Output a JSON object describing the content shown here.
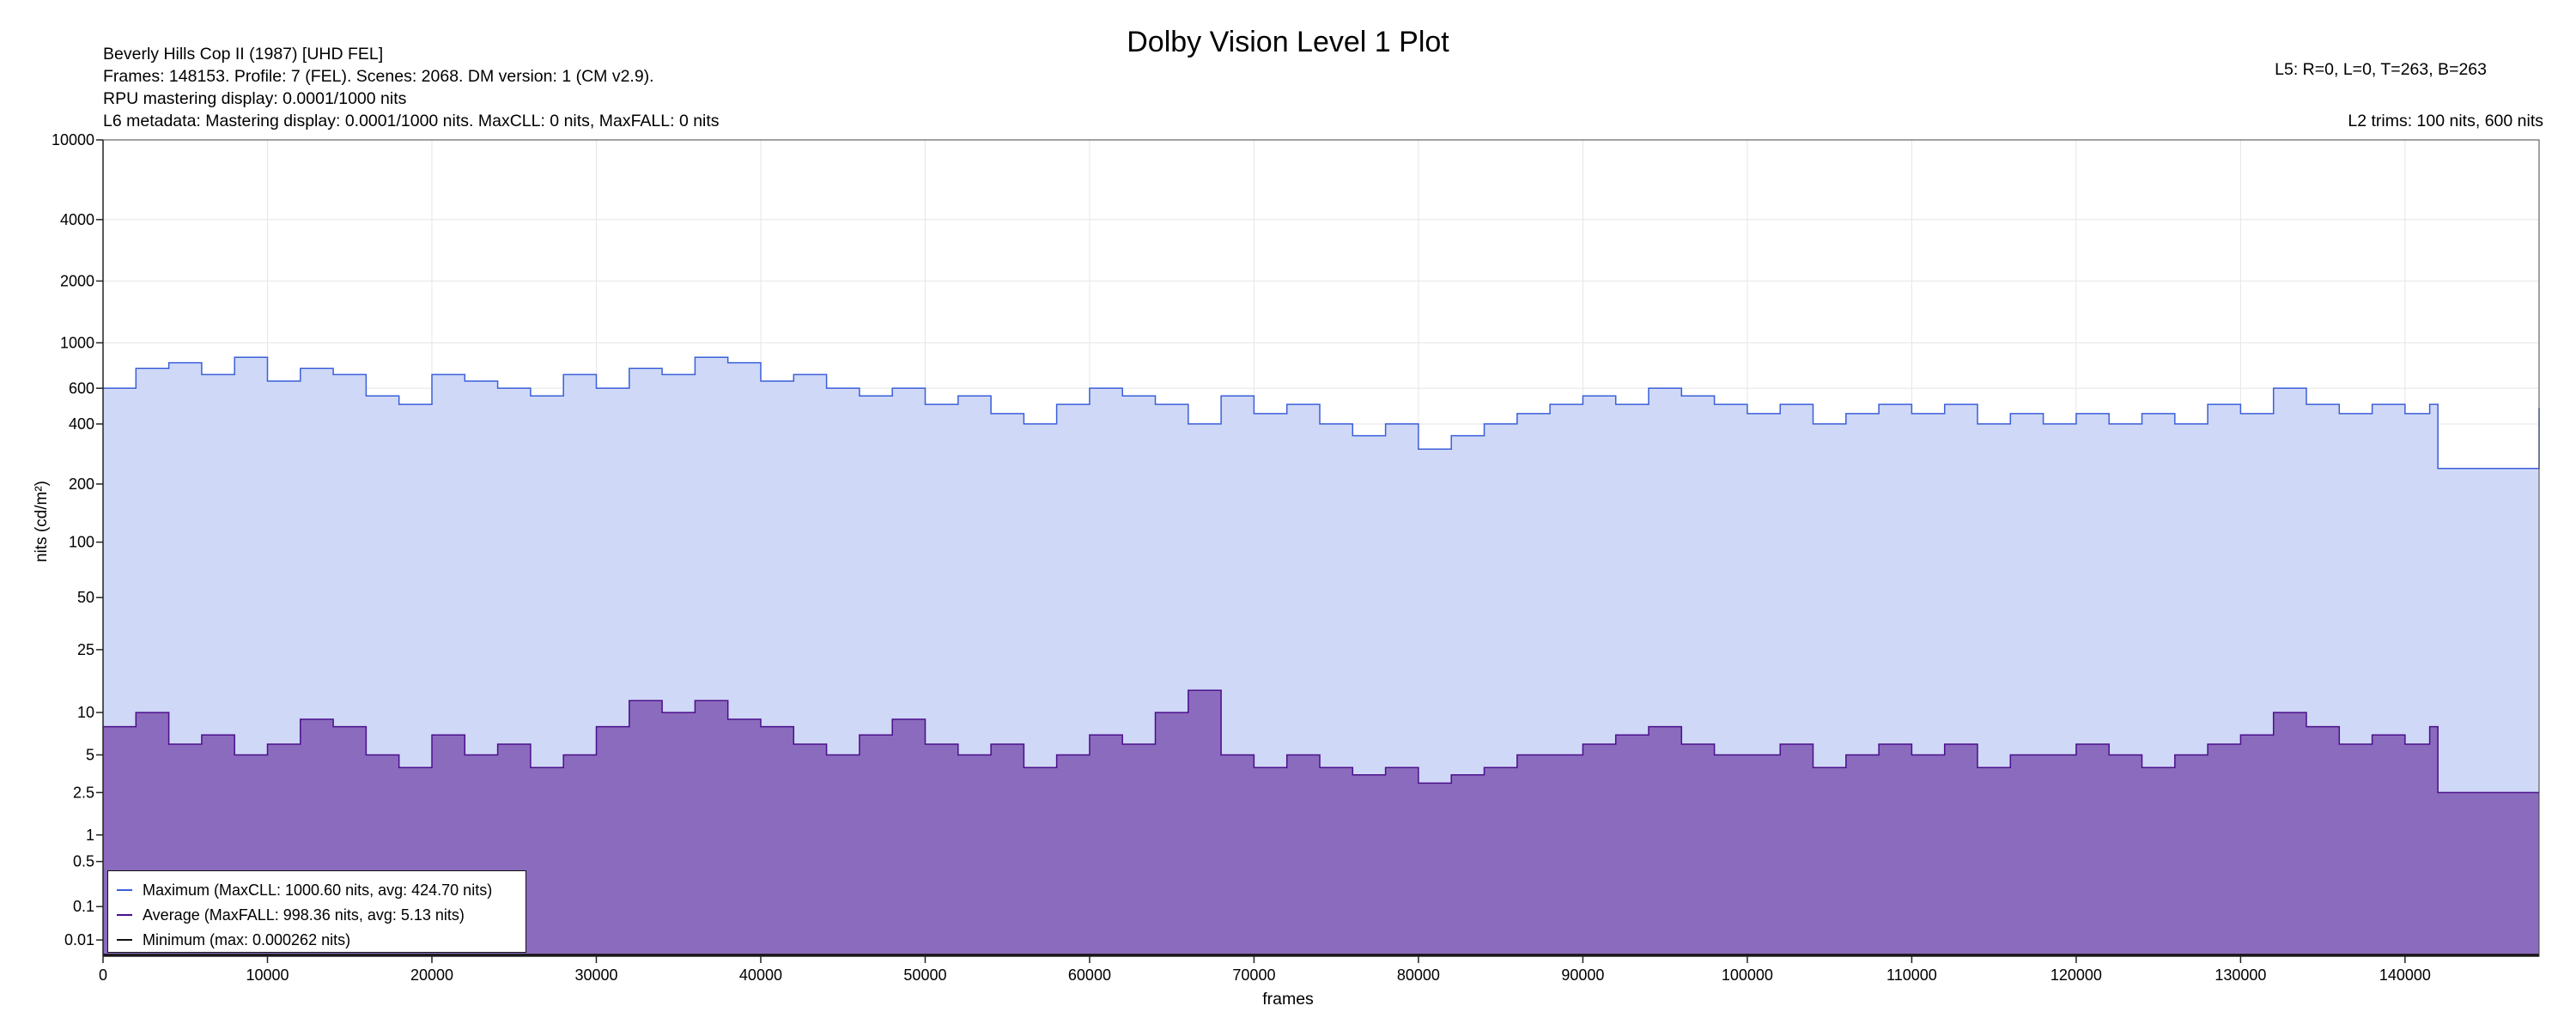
{
  "header": {
    "title": "Dolby Vision Level 1 Plot",
    "info_lines": [
      "Beverly Hills Cop II (1987) [UHD FEL]",
      "Frames: 148153. Profile: 7 (FEL). Scenes: 2068. DM version: 1 (CM v2.9).",
      "RPU mastering display: 0.0001/1000 nits",
      "L6 metadata: Mastering display: 0.0001/1000 nits. MaxCLL: 0 nits, MaxFALL: 0 nits"
    ],
    "l5": "L5: R=0, L=0, T=263, B=263",
    "l2": "L2 trims: 100 nits, 600 nits"
  },
  "chart_data": {
    "type": "area",
    "title": "Dolby Vision Level 1 Plot",
    "xlabel": "frames",
    "ylabel": "nits (cd/m²)",
    "y_scale": "pq",
    "xlim": [
      0,
      148153
    ],
    "ylim": [
      0.0001,
      10000
    ],
    "x_ticks": [
      0,
      10000,
      20000,
      30000,
      40000,
      50000,
      60000,
      70000,
      80000,
      90000,
      100000,
      110000,
      120000,
      130000,
      140000
    ],
    "x_tick_labels": [
      "0",
      "10000",
      "20000",
      "30000",
      "40000",
      "50000",
      "60000",
      "70000",
      "80000",
      "90000",
      "100000",
      "110000",
      "120000",
      "130000",
      "140000"
    ],
    "y_ticks": [
      0.01,
      0.1,
      0.5,
      1,
      2.5,
      5,
      10,
      25,
      50,
      100,
      200,
      400,
      600,
      1000,
      2000,
      4000,
      10000
    ],
    "y_tick_labels": [
      "0.01",
      "0.1",
      "0.5",
      "1",
      "2.5",
      "5",
      "10",
      "25",
      "50",
      "100",
      "200",
      "400",
      "600",
      "1000",
      "2000",
      "4000",
      "10000"
    ],
    "grid": true,
    "legend_position": "bottom-left",
    "series": [
      {
        "name": "Maximum (MaxCLL: 1000.60 nits, avg: 424.70 nits)",
        "color": "#3a5fd9",
        "fill": "#cfd8f6",
        "max": 1000.6,
        "avg": 424.7,
        "x": [
          0,
          2000,
          4000,
          6000,
          8000,
          10000,
          12000,
          14000,
          16000,
          18000,
          20000,
          22000,
          24000,
          26000,
          28000,
          30000,
          32000,
          34000,
          36000,
          38000,
          40000,
          42000,
          44000,
          46000,
          48000,
          50000,
          52000,
          54000,
          56000,
          58000,
          60000,
          62000,
          64000,
          66000,
          68000,
          70000,
          72000,
          74000,
          76000,
          78000,
          80000,
          82000,
          84000,
          86000,
          88000,
          90000,
          92000,
          94000,
          96000,
          98000,
          100000,
          102000,
          104000,
          106000,
          108000,
          110000,
          112000,
          114000,
          116000,
          118000,
          120000,
          122000,
          124000,
          126000,
          128000,
          130000,
          132000,
          134000,
          136000,
          138000,
          140000,
          141500,
          142000,
          146000,
          148153
        ],
        "values": [
          600,
          750,
          800,
          700,
          850,
          650,
          750,
          700,
          550,
          500,
          700,
          650,
          600,
          550,
          700,
          600,
          750,
          700,
          850,
          800,
          650,
          700,
          600,
          550,
          600,
          500,
          550,
          450,
          400,
          500,
          600,
          550,
          500,
          400,
          550,
          450,
          500,
          400,
          350,
          400,
          300,
          350,
          400,
          450,
          500,
          550,
          500,
          600,
          550,
          500,
          450,
          500,
          400,
          450,
          500,
          450,
          500,
          400,
          450,
          400,
          450,
          400,
          450,
          400,
          500,
          450,
          600,
          500,
          450,
          500,
          450,
          500,
          240,
          240,
          480
        ]
      },
      {
        "name": "Average (MaxFALL: 998.36 nits, avg: 5.13 nits)",
        "color": "#4b0f8c",
        "fill": "#8b6bbd",
        "max": 998.36,
        "avg": 5.13,
        "x": [
          0,
          2000,
          4000,
          6000,
          8000,
          10000,
          12000,
          14000,
          16000,
          18000,
          20000,
          22000,
          24000,
          26000,
          28000,
          30000,
          32000,
          34000,
          36000,
          38000,
          40000,
          42000,
          44000,
          46000,
          48000,
          50000,
          52000,
          54000,
          56000,
          58000,
          60000,
          62000,
          64000,
          66000,
          68000,
          70000,
          72000,
          74000,
          76000,
          78000,
          80000,
          82000,
          84000,
          86000,
          88000,
          90000,
          92000,
          94000,
          96000,
          98000,
          100000,
          102000,
          104000,
          106000,
          108000,
          110000,
          112000,
          114000,
          116000,
          118000,
          120000,
          122000,
          124000,
          126000,
          128000,
          130000,
          132000,
          134000,
          136000,
          138000,
          140000,
          141500,
          142000,
          146000,
          148153
        ],
        "values": [
          8,
          10,
          6,
          7,
          5,
          6,
          9,
          8,
          5,
          4,
          7,
          5,
          6,
          4,
          5,
          8,
          12,
          10,
          12,
          9,
          8,
          6,
          5,
          7,
          9,
          6,
          5,
          6,
          4,
          5,
          7,
          6,
          10,
          14,
          5,
          4,
          5,
          4,
          3.5,
          4,
          3,
          3.5,
          4,
          5,
          5,
          6,
          7,
          8,
          6,
          5,
          5,
          6,
          4,
          5,
          6,
          5,
          6,
          4,
          5,
          5,
          6,
          5,
          4,
          5,
          6,
          7,
          10,
          8,
          6,
          7,
          6,
          8,
          2.5,
          2.5,
          2.5
        ]
      },
      {
        "name": "Minimum (max: 0.000262 nits)",
        "color": "#111111",
        "max": 0.000262
      }
    ]
  },
  "legend": {
    "items": [
      {
        "label": "Maximum (MaxCLL: 1000.60 nits, avg: 424.70 nits)",
        "color": "#3a5fd9"
      },
      {
        "label": "Average (MaxFALL: 998.36 nits, avg: 5.13 nits)",
        "color": "#4b0f8c"
      },
      {
        "label": "Minimum (max: 0.000262 nits)",
        "color": "#111111"
      }
    ]
  }
}
